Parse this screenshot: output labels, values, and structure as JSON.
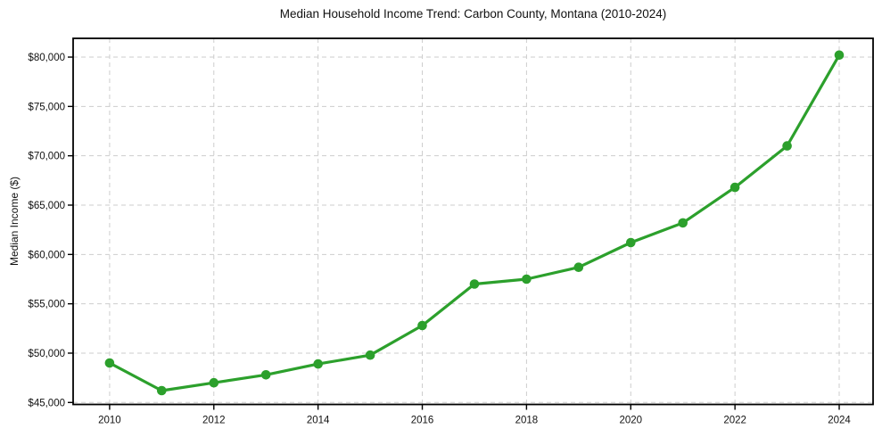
{
  "chart_data": {
    "type": "line",
    "title": "Median Household Income Trend: Carbon County, Montana (2010-2024)",
    "xlabel": "",
    "ylabel": "Median Income ($)",
    "x": [
      2010,
      2011,
      2012,
      2013,
      2014,
      2015,
      2016,
      2017,
      2018,
      2019,
      2020,
      2021,
      2022,
      2023,
      2024
    ],
    "values": [
      49000,
      46200,
      47000,
      47800,
      48900,
      49800,
      52800,
      57000,
      57500,
      58700,
      61200,
      63200,
      66800,
      71000,
      80200
    ],
    "x_ticks": [
      {
        "v": 2010,
        "label": "2010"
      },
      {
        "v": 2012,
        "label": "2012"
      },
      {
        "v": 2014,
        "label": "2014"
      },
      {
        "v": 2016,
        "label": "2016"
      },
      {
        "v": 2018,
        "label": "2018"
      },
      {
        "v": 2020,
        "label": "2020"
      },
      {
        "v": 2022,
        "label": "2022"
      },
      {
        "v": 2024,
        "label": "2024"
      }
    ],
    "y_ticks": [
      {
        "v": 45000,
        "label": "$45,000"
      },
      {
        "v": 50000,
        "label": "$50,000"
      },
      {
        "v": 55000,
        "label": "$55,000"
      },
      {
        "v": 60000,
        "label": "$60,000"
      },
      {
        "v": 65000,
        "label": "$65,000"
      },
      {
        "v": 70000,
        "label": "$70,000"
      },
      {
        "v": 75000,
        "label": "$75,000"
      },
      {
        "v": 80000,
        "label": "$80,000"
      }
    ],
    "xlim": [
      2009.3,
      2024.65
    ],
    "ylim": [
      44800,
      81900
    ],
    "grid": true,
    "grid_style": "dashed",
    "legend": false,
    "line_color": "#2ca02c",
    "marker": "circle",
    "marker_radius": 5.3,
    "line_width": 3.2,
    "grid_color": "#cdcdcd",
    "spine_color": "#000000",
    "background_color": "#ffffff"
  }
}
